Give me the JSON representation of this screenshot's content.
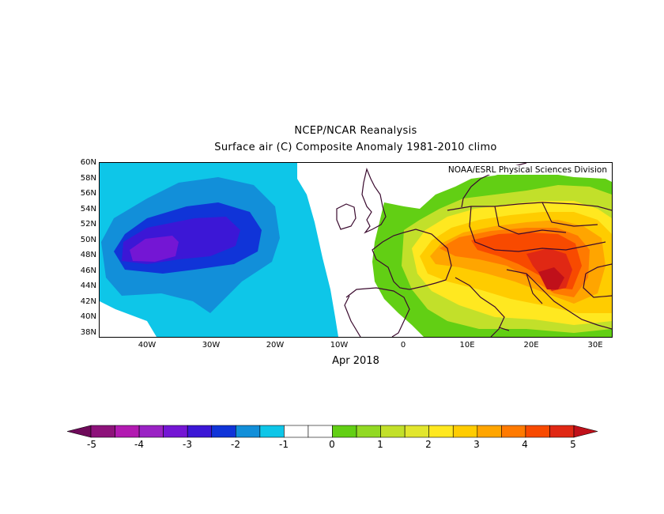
{
  "header": {
    "title": "NCEP/NCAR Reanalysis",
    "subtitle": "Surface air (C) Composite Anomaly 1981-2010 climo"
  },
  "map": {
    "credit": "NOAA/ESRL Physical Sciences Division",
    "period": "Apr 2018",
    "lat_labels": [
      "60N",
      "58N",
      "56N",
      "54N",
      "52N",
      "50N",
      "48N",
      "46N",
      "44N",
      "42N",
      "40N",
      "38N"
    ],
    "lon_labels": [
      "40W",
      "30W",
      "20W",
      "10W",
      "0",
      "10E",
      "20E",
      "30E"
    ],
    "variable": "Surface air temperature anomaly",
    "units": "C",
    "extent": {
      "lon": [
        -47,
        32
      ],
      "lat": [
        37.5,
        60
      ]
    }
  },
  "colorbar": {
    "labels": [
      "-5",
      "-4",
      "-3",
      "-2",
      "-1",
      "0",
      "1",
      "2",
      "3",
      "4",
      "5"
    ],
    "colors": [
      "#6e0a5a",
      "#8d127a",
      "#b21ab1",
      "#9a22c4",
      "#7416d4",
      "#3c17d6",
      "#1034d8",
      "#128fd9",
      "#0ec6e8",
      "#ffffff",
      "#ffffff",
      "#62cf14",
      "#92d924",
      "#c2e02a",
      "#e2e62e",
      "#ffe820",
      "#ffcc00",
      "#ffa500",
      "#ff7a00",
      "#f84a00",
      "#e02814",
      "#c0101a"
    ]
  },
  "colors": {
    "land_outline": "#3a0a2e",
    "ocean_blank": "#ffffff"
  }
}
